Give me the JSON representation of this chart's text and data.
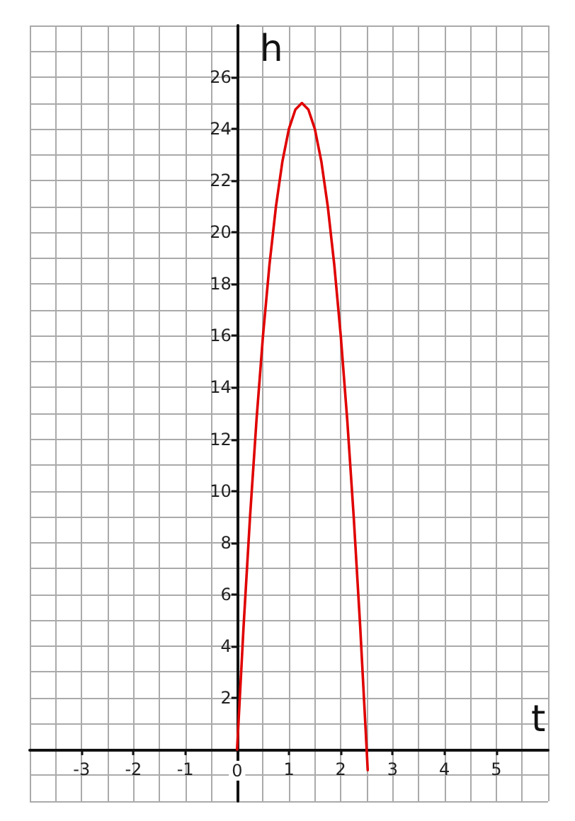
{
  "chart_data": {
    "type": "line",
    "xlabel": "t",
    "ylabel": "h",
    "x": [
      0,
      0.125,
      0.25,
      0.375,
      0.5,
      0.625,
      0.75,
      0.875,
      1,
      1.125,
      1.25,
      1.375,
      1.5,
      1.625,
      1.75,
      1.875,
      2,
      2.125,
      2.25,
      2.375,
      2.5,
      2.52
    ],
    "series": [
      {
        "color": "#e00000",
        "values": [
          0,
          4.75,
          9,
          12.75,
          16,
          18.75,
          21,
          22.75,
          24,
          24.75,
          25,
          24.75,
          24,
          22.75,
          21,
          18.75,
          16,
          12.75,
          9,
          4.75,
          0,
          -0.8
        ]
      }
    ],
    "xlim": [
      -4,
      6
    ],
    "xticks": [
      {
        "value": -4,
        "label": null
      },
      {
        "value": -3.5,
        "label": null
      },
      -3,
      {
        "value": -2.5,
        "label": null
      },
      -2,
      {
        "value": -1.5,
        "label": null
      },
      -1,
      {
        "value": -0.5,
        "label": null
      },
      0,
      {
        "value": 0.5,
        "label": null
      },
      1,
      {
        "value": 1.5,
        "label": null
      },
      2,
      {
        "value": 2.5,
        "label": null
      },
      3,
      {
        "value": 3.5,
        "label": null
      },
      4,
      {
        "value": 4.5,
        "label": null
      },
      5,
      {
        "value": 5.5,
        "label": null
      },
      {
        "value": 6,
        "label": null
      }
    ],
    "ylim": [
      -2,
      28
    ],
    "yticks": [
      {
        "value": -2,
        "label": null
      },
      {
        "value": -1,
        "label": null
      },
      {
        "value": 0,
        "label": null
      },
      {
        "value": 1,
        "label": null
      },
      2,
      {
        "value": 3,
        "label": null
      },
      4,
      {
        "value": 5,
        "label": null
      },
      6,
      {
        "value": 7,
        "label": null
      },
      8,
      {
        "value": 9,
        "label": null
      },
      10,
      {
        "value": 11,
        "label": null
      },
      12,
      {
        "value": 13,
        "label": null
      },
      14,
      {
        "value": 15,
        "label": null
      },
      16,
      {
        "value": 17,
        "label": null
      },
      18,
      {
        "value": 19,
        "label": null
      },
      20,
      {
        "value": 21,
        "label": null
      },
      22,
      {
        "value": 23,
        "label": null
      },
      24,
      {
        "value": 25,
        "label": null
      },
      26,
      {
        "value": 27,
        "label": null
      },
      {
        "value": 28,
        "label": null
      }
    ],
    "grid": true,
    "marker": "none",
    "line_style": "solid"
  }
}
